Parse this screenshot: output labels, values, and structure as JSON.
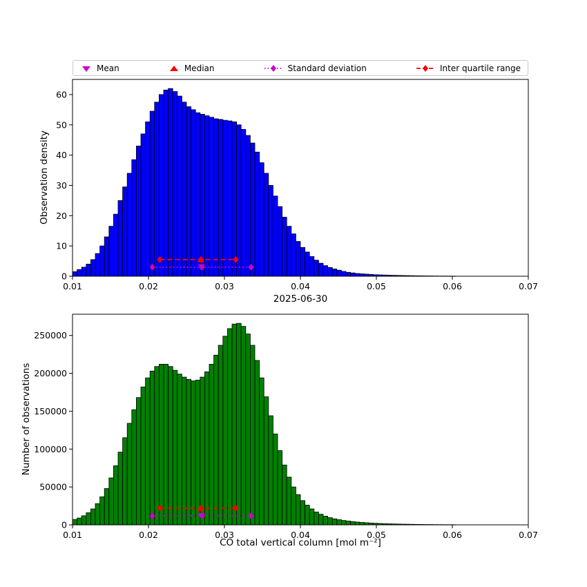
{
  "figure": {
    "colors": {
      "magenta": "#cc00cc",
      "red": "#ff0000",
      "blue": "#0000ff",
      "green": "#008000",
      "edge": "#000000"
    },
    "legend": {
      "items": [
        {
          "label": "Mean",
          "marker": "triangle-down-icon",
          "color": "#cc00cc"
        },
        {
          "label": "Median",
          "marker": "triangle-up-icon",
          "color": "#ff0000"
        },
        {
          "label": "Standard deviation",
          "marker": "diamond-dotted-line-icon",
          "color": "#cc00cc"
        },
        {
          "label": "Inter quartile range",
          "marker": "diamond-dashed-line-icon",
          "color": "#ff0000"
        }
      ]
    }
  },
  "chart_data": [
    {
      "type": "bar",
      "title": "",
      "ylabel": "Observation density",
      "xlabel": "",
      "bar_color": "#0000ff",
      "edge_color": "#000000",
      "bin_start": 0.01,
      "bin_width": 0.0006,
      "xlim": [
        0.01,
        0.07
      ],
      "ylim": [
        0,
        65
      ],
      "xticks": [
        0.01,
        0.02,
        0.03,
        0.04,
        0.05,
        0.06,
        0.07
      ],
      "xtick_labels": [
        "0.01",
        "0.02",
        "0.03",
        "0.04",
        "0.05",
        "0.06",
        "0.07"
      ],
      "yticks": [
        0,
        10,
        20,
        30,
        40,
        50,
        60
      ],
      "ytick_labels": [
        "0",
        "10",
        "20",
        "30",
        "40",
        "50",
        "60"
      ],
      "grid": false,
      "values": [
        1.5,
        2.2,
        3,
        4,
        5.5,
        7.5,
        10,
        13,
        16.5,
        20.5,
        25,
        29.5,
        34,
        38.5,
        43,
        47,
        51,
        54.5,
        57.5,
        60,
        61.5,
        62,
        61,
        59.5,
        57.5,
        56,
        55,
        54,
        53.5,
        53,
        52.5,
        52,
        51.8,
        51.5,
        51.3,
        51,
        50,
        48.5,
        46.5,
        44,
        41,
        37.5,
        34,
        30,
        26.5,
        23,
        19.5,
        16.5,
        14,
        11.5,
        9.5,
        8,
        6.5,
        5.3,
        4.3,
        3.5,
        2.9,
        2.4,
        2,
        1.6,
        1.3,
        1.1,
        0.9,
        0.8,
        0.7,
        0.6,
        0.5,
        0.45,
        0.4,
        0.35,
        0.3,
        0.27,
        0.24,
        0.21,
        0.18,
        0.15,
        0.13,
        0.11,
        0.1,
        0.08,
        0.07,
        0.06,
        0.05,
        0.04
      ],
      "markers": {
        "mean": 0.027,
        "median": 0.0269,
        "q1": 0.0215,
        "q3": 0.0315,
        "std_low": 0.0205,
        "std_high": 0.0335,
        "iqr_line_y": 5.5,
        "std_line_y": 3.0
      }
    },
    {
      "type": "bar",
      "title": "2025-06-30",
      "ylabel": "Number of observations",
      "xlabel": "CO total vertical column [mol m⁻²]",
      "bar_color": "#008000",
      "edge_color": "#000000",
      "bin_start": 0.01,
      "bin_width": 0.0006,
      "xlim": [
        0.01,
        0.07
      ],
      "ylim": [
        0,
        278000
      ],
      "xticks": [
        0.01,
        0.02,
        0.03,
        0.04,
        0.05,
        0.06,
        0.07
      ],
      "xtick_labels": [
        "0.01",
        "0.02",
        "0.03",
        "0.04",
        "0.05",
        "0.06",
        "0.07"
      ],
      "yticks": [
        0,
        50000,
        100000,
        150000,
        200000,
        250000
      ],
      "ytick_labels": [
        "0",
        "50000",
        "100000",
        "150000",
        "200000",
        "250000"
      ],
      "grid": false,
      "values": [
        7000,
        9000,
        12000,
        16000,
        21000,
        28000,
        37000,
        48000,
        62000,
        78000,
        96000,
        115000,
        134000,
        152000,
        168000,
        182000,
        194000,
        203000,
        209000,
        212000,
        212000,
        209000,
        204000,
        199000,
        195000,
        192000,
        190000,
        191000,
        195000,
        202000,
        212000,
        224000,
        237000,
        249000,
        259000,
        265000,
        266000,
        262000,
        252000,
        237000,
        217000,
        194000,
        169000,
        144000,
        120000,
        98000,
        79000,
        63000,
        50000,
        40000,
        32000,
        26000,
        21000,
        17000,
        14000,
        11500,
        9500,
        8000,
        6800,
        5800,
        5000,
        4300,
        3700,
        3200,
        2800,
        2400,
        2100,
        1800,
        1600,
        1400,
        1200,
        1050,
        900,
        800,
        700,
        600,
        520,
        450,
        400,
        350,
        300,
        260,
        230,
        200
      ],
      "markers": {
        "mean": 0.027,
        "median": 0.0269,
        "q1": 0.0215,
        "q3": 0.0315,
        "std_low": 0.0205,
        "std_high": 0.0335,
        "iqr_line_y": 22000,
        "std_line_y": 12000
      }
    }
  ]
}
